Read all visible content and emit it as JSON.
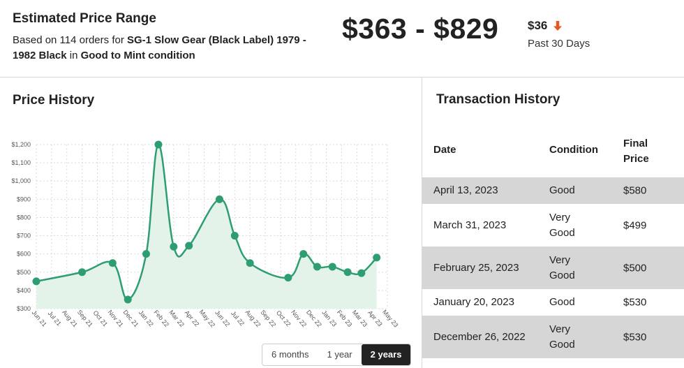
{
  "summary": {
    "title": "Estimated Price Range",
    "prefix": "Based on 114 orders for ",
    "product": "SG-1 Slow Gear (Black Label)",
    "variant": "1979 - 1982 Black",
    "in_text": " in ",
    "condition": "Good to Mint condition",
    "range": "$363 - $829",
    "change": "$36",
    "change_direction": "down",
    "change_color": "#e8571e",
    "period": "Past 30 Days"
  },
  "price_history": {
    "title": "Price History",
    "ranges": [
      "6 months",
      "1 year",
      "2 years"
    ],
    "active_range": "2 years"
  },
  "chart_data": {
    "type": "line",
    "title": "Price History",
    "xlabel": "",
    "ylabel": "",
    "ylim": [
      300,
      1200
    ],
    "yticks": [
      "$300",
      "$400",
      "$500",
      "$600",
      "$700",
      "$800",
      "$900",
      "$1,000",
      "$1,100",
      "$1,200"
    ],
    "ytick_values": [
      300,
      400,
      500,
      600,
      700,
      800,
      900,
      1000,
      1100,
      1200
    ],
    "xticks": [
      "Jun 21",
      "Jul 21",
      "Aug 21",
      "Sep 21",
      "Oct 21",
      "Nov 21",
      "Dec 21",
      "Jan 22",
      "Feb 22",
      "Mar 22",
      "Apr 22",
      "May 22",
      "Jun 22",
      "Jul 22",
      "Aug 22",
      "Sep 22",
      "Oct 22",
      "Nov 22",
      "Dec 22",
      "Jan 23",
      "Feb 23",
      "Mar 23",
      "Apr 23",
      "May 23"
    ],
    "grid": true,
    "line_color": "#2e9e72",
    "fill_color": "#e3f3ea",
    "points": [
      {
        "x": 0.0,
        "y": 450
      },
      {
        "x": 3.0,
        "y": 500
      },
      {
        "x": 5.0,
        "y": 550
      },
      {
        "x": 6.0,
        "y": 350
      },
      {
        "x": 7.2,
        "y": 600
      },
      {
        "x": 8.0,
        "y": 1200
      },
      {
        "x": 9.0,
        "y": 640
      },
      {
        "x": 10.0,
        "y": 645
      },
      {
        "x": 12.0,
        "y": 900
      },
      {
        "x": 13.0,
        "y": 700
      },
      {
        "x": 14.0,
        "y": 550
      },
      {
        "x": 16.5,
        "y": 470
      },
      {
        "x": 17.5,
        "y": 600
      },
      {
        "x": 18.4,
        "y": 530
      },
      {
        "x": 19.4,
        "y": 530
      },
      {
        "x": 20.4,
        "y": 500
      },
      {
        "x": 21.3,
        "y": 495
      },
      {
        "x": 22.3,
        "y": 580
      }
    ]
  },
  "transactions": {
    "title": "Transaction History",
    "headers": {
      "date": "Date",
      "condition": "Condition",
      "price_line1": "Final",
      "price_line2": "Price"
    },
    "rows": [
      {
        "date": "April 13, 2023",
        "condition": "Good",
        "price": "$580"
      },
      {
        "date": "March 31, 2023",
        "condition": "Very Good",
        "price": "$499"
      },
      {
        "date": "February 25, 2023",
        "condition": "Very Good",
        "price": "$500"
      },
      {
        "date": "January 20, 2023",
        "condition": "Good",
        "price": "$530"
      },
      {
        "date": "December 26, 2022",
        "condition": "Very Good",
        "price": "$530"
      }
    ]
  }
}
